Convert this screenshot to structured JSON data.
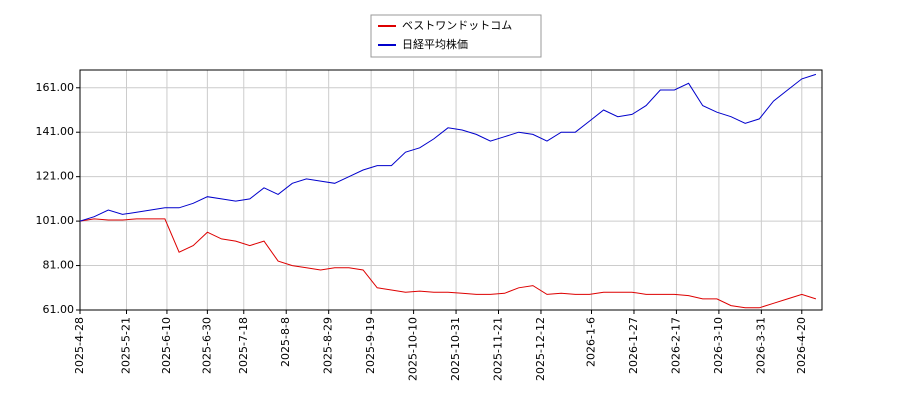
{
  "chart_data": {
    "type": "line",
    "x": [
      "2025-4-28",
      "2025-5-5",
      "2025-5-12",
      "2025-5-19",
      "2025-5-26",
      "2025-6-2",
      "2025-6-9",
      "2025-6-16",
      "2025-6-23",
      "2025-6-30",
      "2025-7-7",
      "2025-7-14",
      "2025-7-21",
      "2025-7-28",
      "2025-8-4",
      "2025-8-11",
      "2025-8-18",
      "2025-8-25",
      "2025-9-1",
      "2025-9-8",
      "2025-9-15",
      "2025-9-22",
      "2025-9-29",
      "2025-10-6",
      "2025-10-13",
      "2025-10-20",
      "2025-10-27",
      "2025-11-3",
      "2025-11-10",
      "2025-11-17",
      "2025-11-24",
      "2025-12-1",
      "2025-12-8",
      "2025-12-15",
      "2025-12-22",
      "2025-12-29",
      "2026-1-5",
      "2026-1-12",
      "2026-1-19",
      "2026-1-26",
      "2026-2-2",
      "2026-2-9",
      "2026-2-16",
      "2026-2-23",
      "2026-3-2",
      "2026-3-9",
      "2026-3-16",
      "2026-3-23",
      "2026-3-30",
      "2026-4-6",
      "2026-4-13",
      "2026-4-20",
      "2026-4-27"
    ],
    "series": [
      {
        "name": "ベストワンドットコム",
        "color": "#dd0000",
        "values": [
          101,
          102,
          101.5,
          101.5,
          102,
          102,
          102,
          87,
          90,
          96,
          93,
          92,
          90,
          92,
          83,
          81,
          80,
          79,
          80,
          80,
          79,
          71,
          70,
          69,
          69.5,
          69,
          69,
          68.5,
          68,
          68,
          68.5,
          71,
          72,
          68,
          68.5,
          68,
          68,
          69,
          69,
          69,
          68,
          68,
          68,
          67.5,
          66,
          66,
          63,
          62,
          62,
          64,
          66,
          68,
          66
        ]
      },
      {
        "name": "日経平均株価",
        "color": "#0000cc",
        "values": [
          101,
          103,
          106,
          104,
          105,
          106,
          107,
          107,
          109,
          112,
          111,
          110,
          111,
          116,
          113,
          118,
          120,
          119,
          118,
          121,
          124,
          126,
          126,
          132,
          134,
          138,
          143,
          142,
          140,
          137,
          139,
          141,
          140,
          137,
          141,
          141,
          146,
          151,
          148,
          149,
          153,
          160,
          160,
          163,
          153,
          150,
          148,
          145,
          147,
          155,
          160,
          165,
          167
        ]
      }
    ],
    "xlim": [
      "2025-4-28",
      "2026-4-30"
    ],
    "xticks": [
      "2025-4-28",
      "2025-5-21",
      "2025-6-10",
      "2025-6-30",
      "2025-7-18",
      "2025-8-8",
      "2025-8-29",
      "2025-9-19",
      "2025-10-10",
      "2025-10-31",
      "2025-11-21",
      "2025-12-12",
      "2026-1-6",
      "2026-1-27",
      "2026-2-17",
      "2026-3-10",
      "2026-3-31",
      "2026-4-20"
    ],
    "ylim": [
      61,
      169
    ],
    "yticks": [
      {
        "value": 61,
        "label": "61.00"
      },
      {
        "value": 81,
        "label": "81.00"
      },
      {
        "value": 101,
        "label": "101.00"
      },
      {
        "value": 121,
        "label": "121.00"
      },
      {
        "value": 141,
        "label": "141.00"
      },
      {
        "value": 161,
        "label": "161.00"
      }
    ],
    "grid": true,
    "legend": "top"
  }
}
